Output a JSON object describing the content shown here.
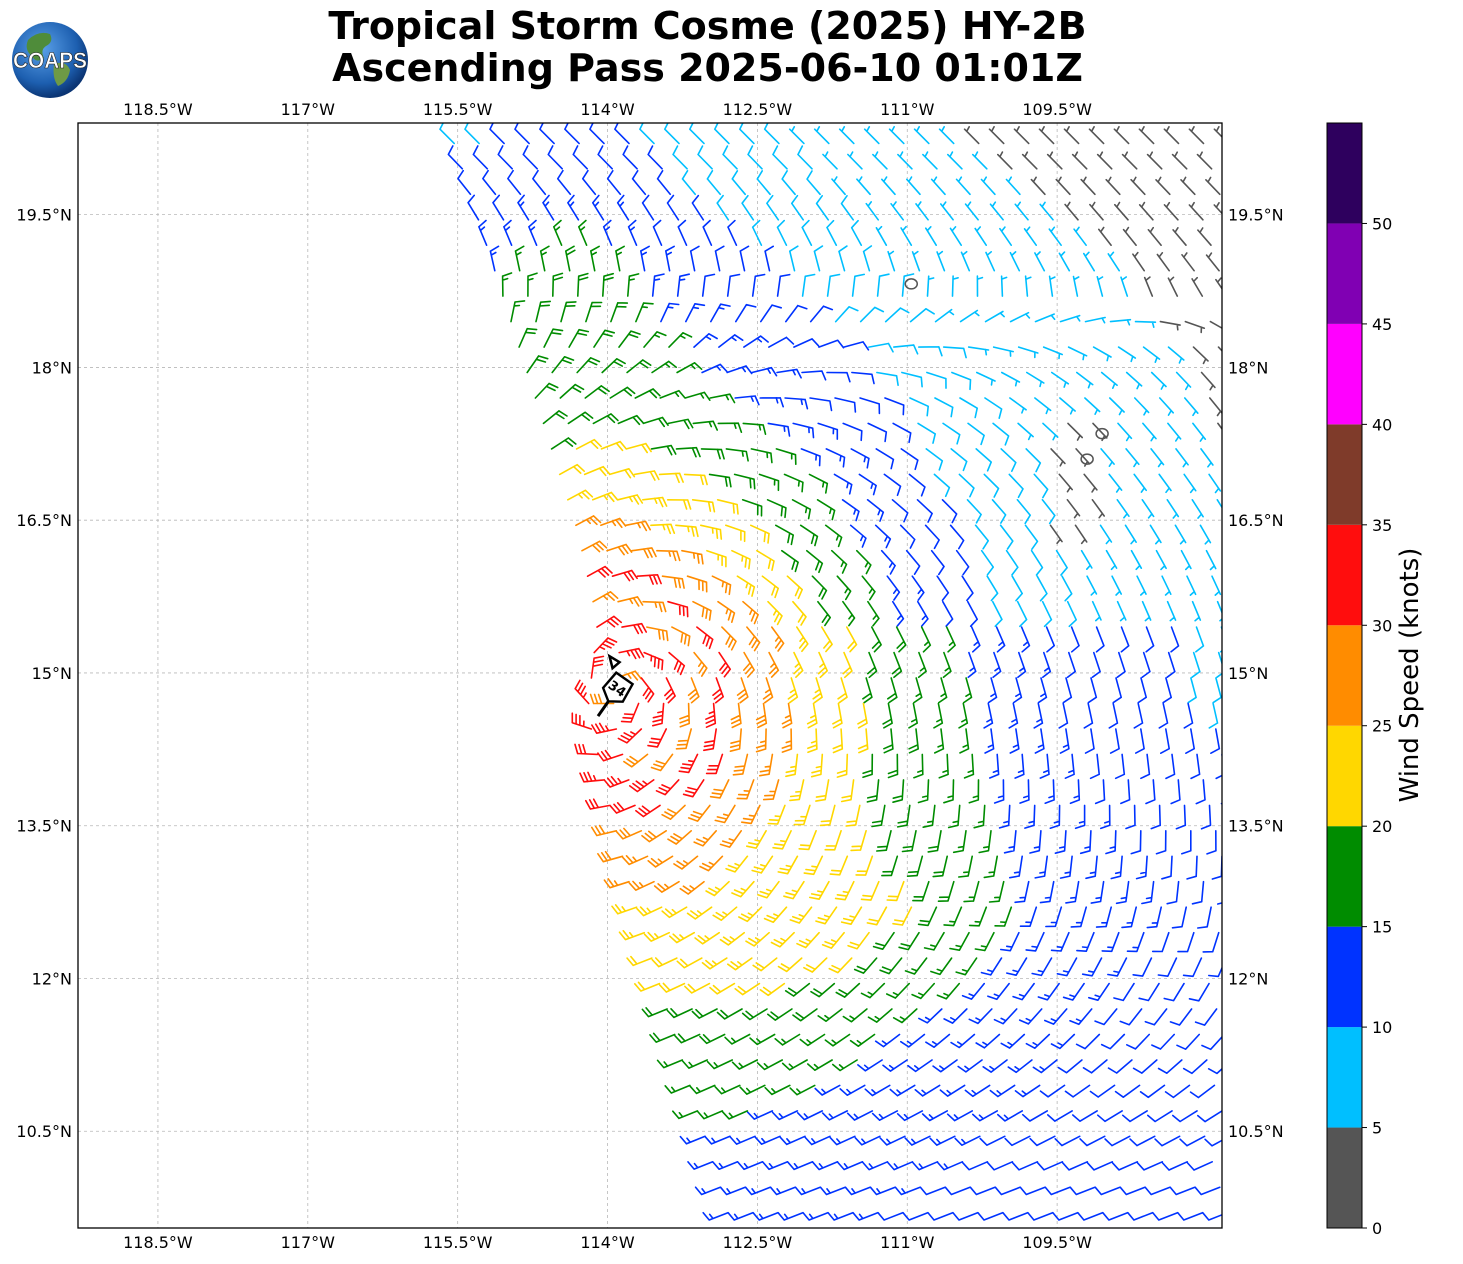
{
  "title": {
    "line1": "Tropical Storm Cosme (2025) HY-2B",
    "line2": "Ascending Pass 2025-06-10 01:01Z"
  },
  "logo": {
    "text": "COAPS",
    "icon": "globe-icon"
  },
  "map": {
    "lon_range": [
      -119.3,
      -107.85
    ],
    "lat_range": [
      9.55,
      20.4
    ],
    "lon_ticks": [
      {
        "value": -118.5,
        "label": "118.5°W"
      },
      {
        "value": -117.0,
        "label": "117°W"
      },
      {
        "value": -115.5,
        "label": "115.5°W"
      },
      {
        "value": -114.0,
        "label": "114°W"
      },
      {
        "value": -112.5,
        "label": "112.5°W"
      },
      {
        "value": -111.0,
        "label": "111°W"
      },
      {
        "value": -109.5,
        "label": "109.5°W"
      }
    ],
    "lat_ticks": [
      {
        "value": 19.5,
        "label": "19.5°N"
      },
      {
        "value": 18.0,
        "label": "18°N"
      },
      {
        "value": 16.5,
        "label": "16.5°N"
      },
      {
        "value": 15.0,
        "label": "15°N"
      },
      {
        "value": 13.5,
        "label": "13.5°N"
      },
      {
        "value": 12.0,
        "label": "12°N"
      },
      {
        "value": 10.5,
        "label": "10.5°N"
      }
    ],
    "grid": true,
    "storm_center": {
      "lon": -113.9,
      "lat": 14.85,
      "label": "34"
    },
    "swath_west_edge": [
      [
        -115.7,
        20.4
      ],
      [
        -114.4,
        16.4
      ],
      [
        -114.2,
        15.5
      ],
      [
        -114.3,
        14.6
      ],
      [
        -113.9,
        13.0
      ],
      [
        -112.85,
        9.55
      ]
    ],
    "swath_east_edge": -107.85,
    "islands": [
      {
        "lon": -110.96,
        "lat": 18.82
      },
      {
        "lon": -109.05,
        "lat": 17.35
      },
      {
        "lon": -109.2,
        "lat": 17.1
      }
    ]
  },
  "colorbar": {
    "label": "Wind Speed (knots)",
    "min": 0,
    "max": 55,
    "tick_labels": [
      "0",
      "5",
      "10",
      "15",
      "20",
      "25",
      "30",
      "35",
      "40",
      "45",
      "50"
    ],
    "bins": [
      {
        "from": 0,
        "to": 5,
        "color": "#555555"
      },
      {
        "from": 5,
        "to": 10,
        "color": "#00bfff"
      },
      {
        "from": 10,
        "to": 15,
        "color": "#0033ff"
      },
      {
        "from": 15,
        "to": 20,
        "color": "#008c00"
      },
      {
        "from": 20,
        "to": 25,
        "color": "#ffd700"
      },
      {
        "from": 25,
        "to": 30,
        "color": "#ff8c00"
      },
      {
        "from": 30,
        "to": 35,
        "color": "#ff0d0d"
      },
      {
        "from": 35,
        "to": 40,
        "color": "#7f3b2a"
      },
      {
        "from": 40,
        "to": 45,
        "color": "#ff00ff"
      },
      {
        "from": 45,
        "to": 50,
        "color": "#8000b3"
      },
      {
        "from": 50,
        "to": 55,
        "color": "#2e005e"
      }
    ]
  }
}
